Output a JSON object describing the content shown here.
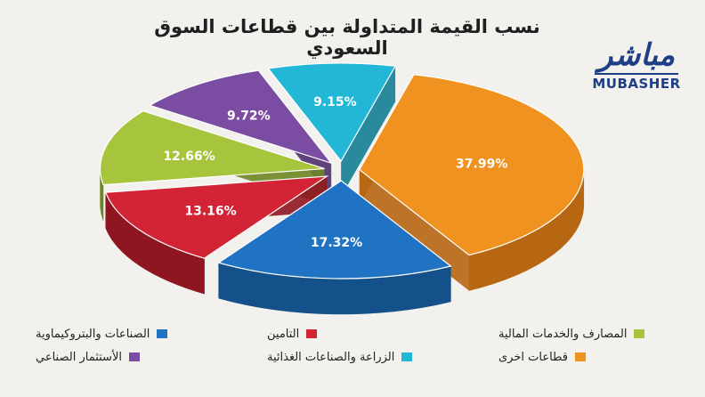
{
  "logo": {
    "arabic": "مباشر",
    "latin": "MUBASHER"
  },
  "chart_data": {
    "type": "pie",
    "title": "نسب القيمة المتداولة بين قطاعات السوق السعودي",
    "series": [
      {
        "name": "قطاعات اخرى",
        "value": 37.99,
        "label": "37.99%",
        "color": "#f0921f",
        "side": "#b76612"
      },
      {
        "name": "الصناعات والبتروكيماوية",
        "value": 17.32,
        "label": "17.32%",
        "color": "#1f73c2",
        "side": "#14508a"
      },
      {
        "name": "التامين",
        "value": 13.16,
        "label": "13.16%",
        "color": "#d22434",
        "side": "#8f1620"
      },
      {
        "name": "المصارف والخدمات المالية",
        "value": 12.66,
        "label": "12.66%",
        "color": "#a6c43c",
        "side": "#6d8623"
      },
      {
        "name": "الأستثمار الصناعي",
        "value": 9.72,
        "label": "9.72%",
        "color": "#7a4da2",
        "side": "#4f2f6d"
      },
      {
        "name": "الزراعة والصناعات الغذائية",
        "value": 9.15,
        "label": "9.15%",
        "color": "#22b7d6",
        "side": "#137d94"
      }
    ],
    "legend_position": "bottom"
  }
}
